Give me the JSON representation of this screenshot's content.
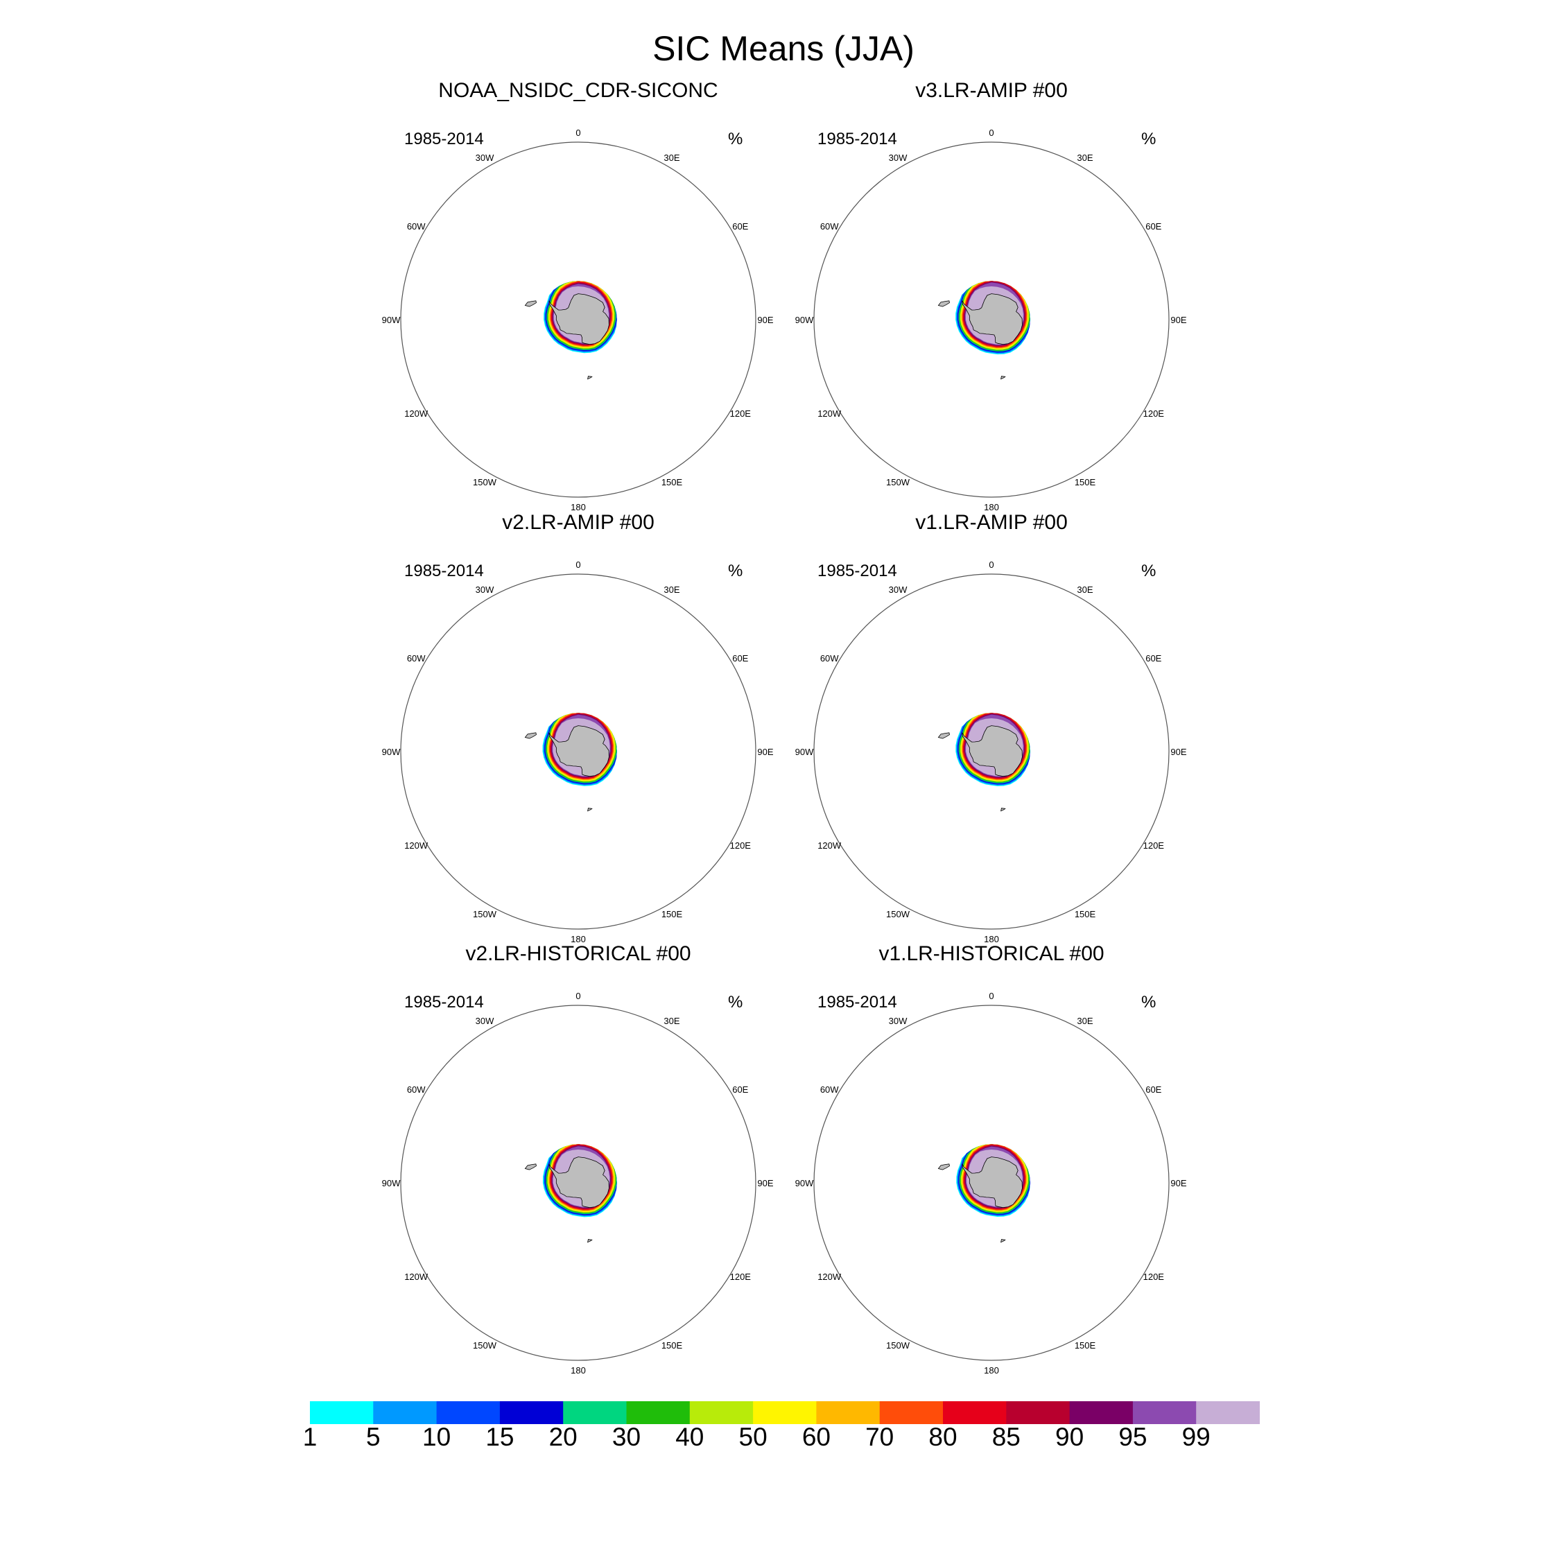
{
  "figure": {
    "title": "SIC Means (JJA)",
    "panel_period": "1985-2014",
    "panel_units": "%"
  },
  "colors": {
    "land": "#bdbdbd",
    "border": "#000000",
    "background": "#ffffff"
  },
  "chart_data": {
    "type": "polar-stereographic contour map (6 panels)",
    "region": "Antarctic / Southern Ocean",
    "season": "JJA",
    "period": "1985-2014",
    "longitude_labels": [
      "0",
      "30E",
      "60E",
      "90E",
      "120E",
      "150E",
      "180",
      "150W",
      "120W",
      "90W",
      "60W",
      "30W"
    ],
    "legend": {
      "units": "%",
      "levels": [
        "1",
        "5",
        "10",
        "15",
        "20",
        "30",
        "40",
        "50",
        "60",
        "70",
        "80",
        "85",
        "90",
        "95",
        "99"
      ],
      "bin_colors": [
        "#00ffff",
        "#0099ff",
        "#0047ff",
        "#0000d6",
        "#00d680",
        "#1fbd0a",
        "#b8eb0a",
        "#fff500",
        "#ffb800",
        "#ff4d0a",
        "#e6001a",
        "#b8002e",
        "#7a0066",
        "#8c4ab0",
        "#c7aed6"
      ]
    },
    "panels": [
      {
        "title": "NOAA_NSIDC_CDR-SICONC",
        "period": "1985-2014",
        "units": "%"
      },
      {
        "title": "v3.LR-AMIP  #00",
        "period": "1985-2014",
        "units": "%"
      },
      {
        "title": "v2.LR-AMIP  #00",
        "period": "1985-2014",
        "units": "%"
      },
      {
        "title": "v1.LR-AMIP  #00",
        "period": "1985-2014",
        "units": "%"
      },
      {
        "title": "v2.LR-HISTORICAL  #00",
        "period": "1985-2014",
        "units": "%"
      },
      {
        "title": "v1.LR-HISTORICAL  #00",
        "period": "1985-2014",
        "units": "%"
      }
    ]
  }
}
